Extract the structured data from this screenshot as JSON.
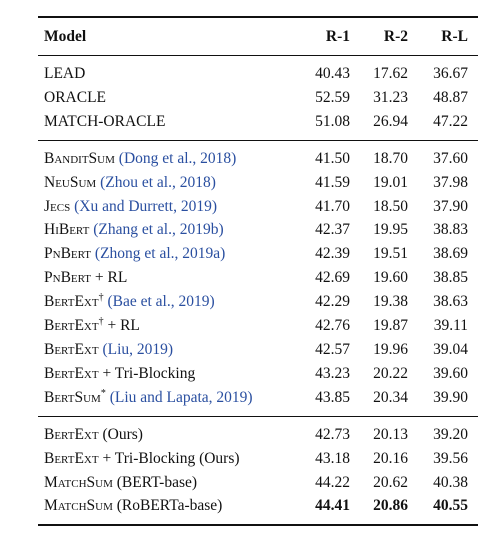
{
  "header": {
    "model": "Model",
    "r1": "R-1",
    "r2": "R-2",
    "rl": "R-L"
  },
  "groups": [
    [
      {
        "name": "LEAD",
        "sc": false,
        "sup": "",
        "cite": "",
        "suffix": "",
        "r1": "40.43",
        "r2": "17.62",
        "rl": "36.67"
      },
      {
        "name": "ORACLE",
        "sc": false,
        "sup": "",
        "cite": "",
        "suffix": "",
        "r1": "52.59",
        "r2": "31.23",
        "rl": "48.87"
      },
      {
        "name": "MATCH-ORACLE",
        "sc": false,
        "sup": "",
        "cite": "",
        "suffix": "",
        "r1": "51.08",
        "r2": "26.94",
        "rl": "47.22"
      }
    ],
    [
      {
        "name": "BanditSum",
        "sc": true,
        "sup": "",
        "cite": "(Dong et al., 2018)",
        "suffix": "",
        "r1": "41.50",
        "r2": "18.70",
        "rl": "37.60"
      },
      {
        "name": "NeuSum",
        "sc": true,
        "sup": "",
        "cite": "(Zhou et al., 2018)",
        "suffix": "",
        "r1": "41.59",
        "r2": "19.01",
        "rl": "37.98"
      },
      {
        "name": "Jecs",
        "sc": true,
        "sup": "",
        "cite": "(Xu and Durrett, 2019)",
        "suffix": "",
        "r1": "41.70",
        "r2": "18.50",
        "rl": "37.90"
      },
      {
        "name": "HiBert",
        "sc": true,
        "sup": "",
        "cite": "(Zhang et al., 2019b)",
        "suffix": "",
        "r1": "42.37",
        "r2": "19.95",
        "rl": "38.83"
      },
      {
        "name": "PnBert",
        "sc": true,
        "sup": "",
        "cite": "(Zhong et al., 2019a)",
        "suffix": "",
        "r1": "42.39",
        "r2": "19.51",
        "rl": "38.69"
      },
      {
        "name": "PnBert",
        "sc": true,
        "sup": "",
        "cite": "",
        "suffix": "+ RL",
        "r1": "42.69",
        "r2": "19.60",
        "rl": "38.85"
      },
      {
        "name": "BertExt",
        "sc": true,
        "sup": "†",
        "cite": "(Bae et al., 2019)",
        "suffix": "",
        "r1": "42.29",
        "r2": "19.38",
        "rl": "38.63"
      },
      {
        "name": "BertExt",
        "sc": true,
        "sup": "†",
        "cite": "",
        "suffix": "+ RL",
        "r1": "42.76",
        "r2": "19.87",
        "rl": "39.11"
      },
      {
        "name": "BertExt",
        "sc": true,
        "sup": "",
        "cite": "(Liu, 2019)",
        "suffix": "",
        "r1": "42.57",
        "r2": "19.96",
        "rl": "39.04"
      },
      {
        "name": "BertExt",
        "sc": true,
        "sup": "",
        "cite": "",
        "suffix": "+ Tri-Blocking",
        "r1": "43.23",
        "r2": "20.22",
        "rl": "39.60"
      },
      {
        "name": "BertSum",
        "sc": true,
        "sup": "*",
        "cite": "(Liu and Lapata, 2019)",
        "suffix": "",
        "r1": "43.85",
        "r2": "20.34",
        "rl": "39.90"
      }
    ],
    [
      {
        "name": "BertExt",
        "sc": true,
        "sup": "",
        "cite": "",
        "suffix": "(Ours)",
        "r1": "42.73",
        "r2": "20.13",
        "rl": "39.20"
      },
      {
        "name": "BertExt",
        "sc": true,
        "sup": "",
        "cite": "",
        "suffix": "+ Tri-Blocking (Ours)",
        "r1": "43.18",
        "r2": "20.16",
        "rl": "39.56"
      },
      {
        "name": "MatchSum",
        "sc": true,
        "sup": "",
        "cite": "",
        "suffix": "(BERT-base)",
        "r1": "44.22",
        "r2": "20.62",
        "rl": "40.38"
      },
      {
        "name": "MatchSum",
        "sc": true,
        "sup": "",
        "cite": "",
        "suffix": "(RoBERTa-base)",
        "r1": "44.41",
        "r2": "20.86",
        "rl": "40.55",
        "bold": true
      }
    ]
  ]
}
